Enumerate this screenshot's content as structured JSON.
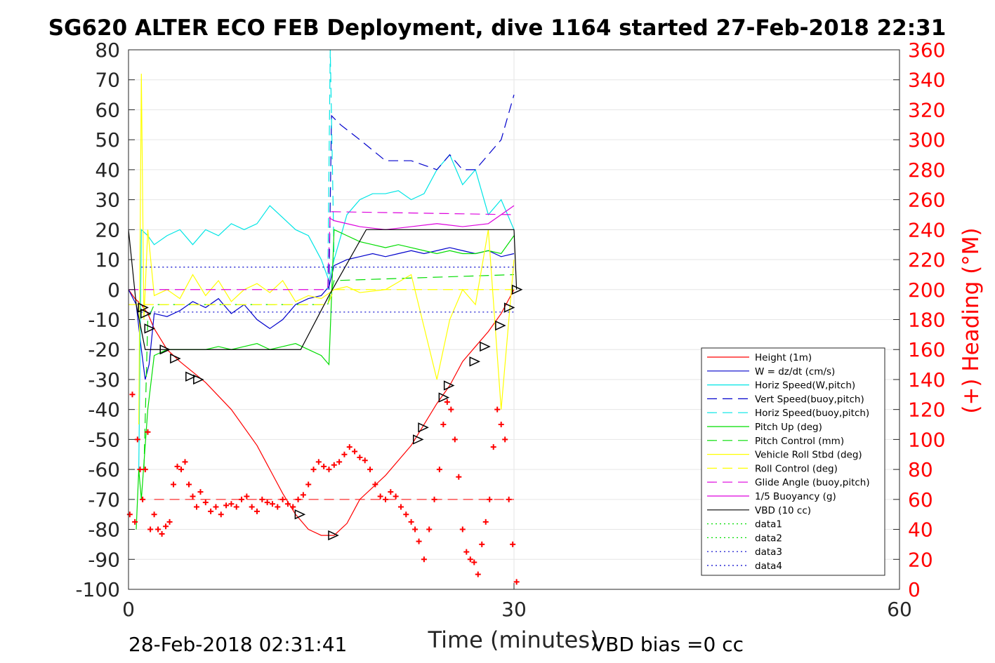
{
  "chart_data": {
    "type": "line",
    "title": "SG620 ALTER ECO FEB Deployment, dive 1164 started 27-Feb-2018 22:31",
    "xlabel": "Time (minutes)",
    "ylabel_right": "(+) Heading (°M)",
    "footer_left": "28-Feb-2018 02:31:41",
    "footer_right": "VBD bias =0 cc",
    "xlim": [
      0,
      60
    ],
    "ylim": [
      -100,
      80
    ],
    "ylim_right": [
      0,
      360
    ],
    "x_ticks": [
      "0",
      "30",
      "60"
    ],
    "x_tick_values": [
      0,
      30,
      60
    ],
    "y_ticks": [
      "80",
      "70",
      "60",
      "50",
      "40",
      "30",
      "20",
      "10",
      "0",
      "-10",
      "-20",
      "-30",
      "-40",
      "-50",
      "-60",
      "-70",
      "-80",
      "-90",
      "-100"
    ],
    "y_tick_values": [
      80,
      70,
      60,
      50,
      40,
      30,
      20,
      10,
      0,
      -10,
      -20,
      -30,
      -40,
      -50,
      -60,
      -70,
      -80,
      -90,
      -100
    ],
    "y2_ticks": [
      "360",
      "340",
      "320",
      "300",
      "280",
      "260",
      "240",
      "220",
      "200",
      "180",
      "160",
      "140",
      "120",
      "100",
      "80",
      "60",
      "40",
      "20",
      "0"
    ],
    "y2_tick_values": [
      360,
      340,
      320,
      300,
      280,
      260,
      240,
      220,
      200,
      180,
      160,
      140,
      120,
      100,
      80,
      60,
      40,
      20,
      0
    ],
    "grid": true,
    "legend_position": "right",
    "legend": [
      {
        "label": "Height (1m)",
        "color": "#ff0000",
        "style": "solid"
      },
      {
        "label": "W = dz/dt (cm/s)",
        "color": "#0000cc",
        "style": "solid"
      },
      {
        "label": "Horiz Speed(W,pitch)",
        "color": "#00e5e5",
        "style": "solid"
      },
      {
        "label": "Vert Speed(buoy,pitch)",
        "color": "#0000cc",
        "style": "dashed"
      },
      {
        "label": "Horiz Speed(buoy,pitch)",
        "color": "#00e5e5",
        "style": "dashed"
      },
      {
        "label": "Pitch Up (deg)",
        "color": "#00dd00",
        "style": "solid"
      },
      {
        "label": "Pitch Control (mm)",
        "color": "#00dd00",
        "style": "dashed"
      },
      {
        "label": "Vehicle Roll Stbd (deg)",
        "color": "#ffff00",
        "style": "solid"
      },
      {
        "label": "Roll Control (deg)",
        "color": "#ffff00",
        "style": "dashed"
      },
      {
        "label": "Glide Angle (buoy,pitch)",
        "color": "#dd00dd",
        "style": "dashed"
      },
      {
        "label": "1/5 Buoyancy (g)",
        "color": "#dd00dd",
        "style": "solid"
      },
      {
        "label": "VBD (10 cc)",
        "color": "#000000",
        "style": "solid"
      },
      {
        "label": "data1",
        "color": "#00dd00",
        "style": "dotted"
      },
      {
        "label": "data2",
        "color": "#00dd00",
        "style": "dotted"
      },
      {
        "label": "data3",
        "color": "#0000cc",
        "style": "dotted"
      },
      {
        "label": "data4",
        "color": "#0000cc",
        "style": "dotted"
      }
    ],
    "series": [
      {
        "name": "Height (1m)",
        "color": "#ff0000",
        "style": "solid",
        "axis": "left",
        "x": [
          0,
          0.5,
          1,
          1.5,
          2,
          3,
          4,
          6,
          8,
          10,
          11,
          12,
          13,
          14,
          15,
          16,
          17,
          18,
          20,
          22,
          24,
          25,
          26,
          27,
          28,
          29,
          30
        ],
        "y": [
          0,
          -3,
          -5,
          -8,
          -13,
          -20,
          -24,
          -31,
          -40,
          -52,
          -60,
          -68,
          -75,
          -80,
          -82,
          -82,
          -78,
          -70,
          -62,
          -52,
          -38,
          -32,
          -24,
          -19,
          -14,
          -8,
          0
        ]
      },
      {
        "name": "W = dz/dt (cm/s)",
        "color": "#0000cc",
        "style": "solid",
        "axis": "left",
        "x": [
          0,
          0.6,
          1,
          1.3,
          1.6,
          2,
          3,
          4,
          5,
          6,
          7,
          8,
          9,
          10,
          11,
          12,
          13,
          14,
          15,
          15.6,
          16,
          17,
          18,
          19,
          20,
          21,
          22,
          23,
          24,
          25,
          26,
          27,
          28,
          29,
          30
        ],
        "y": [
          0,
          -5,
          -20,
          -30,
          -25,
          -8,
          -9,
          -7,
          -4,
          -6,
          -3,
          -8,
          -5,
          -10,
          -13,
          -10,
          -5,
          -3,
          -2,
          1,
          8,
          10,
          11,
          12,
          11,
          12,
          13,
          12,
          13,
          14,
          13,
          12,
          13,
          11,
          12
        ]
      },
      {
        "name": "Horiz Speed(W,pitch)",
        "color": "#00e5e5",
        "style": "solid",
        "axis": "left",
        "x": [
          0.8,
          1,
          1.5,
          2,
          3,
          4,
          5,
          6,
          7,
          8,
          9,
          10,
          11,
          12,
          13,
          14,
          15,
          15.6,
          16,
          17,
          18,
          19,
          20,
          21,
          22,
          23,
          24,
          25,
          26,
          27,
          28,
          29,
          30
        ],
        "y": [
          -60,
          20,
          18,
          15,
          18,
          20,
          15,
          20,
          18,
          22,
          20,
          22,
          28,
          24,
          20,
          18,
          10,
          3,
          10,
          25,
          30,
          32,
          32,
          33,
          30,
          32,
          40,
          45,
          35,
          40,
          25,
          30,
          20
        ]
      },
      {
        "name": "Vert Speed(buoy,pitch)",
        "color": "#0000cc",
        "style": "dashed",
        "axis": "left",
        "x": [
          15.6,
          15.8,
          16.5,
          18,
          20,
          22,
          24,
          25,
          26,
          27,
          28,
          29,
          30
        ],
        "y": [
          0,
          58,
          55,
          50,
          43,
          43,
          40,
          45,
          40,
          40,
          45,
          50,
          65
        ]
      },
      {
        "name": "Horiz Speed(buoy,pitch)",
        "color": "#00e5e5",
        "style": "dashed",
        "axis": "left",
        "x": [
          15.5,
          15.7,
          16
        ],
        "y": [
          0,
          80,
          10
        ]
      },
      {
        "name": "Pitch Up (deg)",
        "color": "#00dd00",
        "style": "solid",
        "axis": "left",
        "x": [
          0.6,
          0.8,
          1,
          1.5,
          2,
          3,
          4,
          5,
          6,
          7,
          8,
          9,
          10,
          11,
          12,
          13,
          14,
          15,
          15.6,
          16,
          17,
          18,
          19,
          20,
          21,
          22,
          23,
          24,
          25,
          26,
          27,
          28,
          29,
          30
        ],
        "y": [
          -80,
          -60,
          -70,
          -40,
          -22,
          -20,
          -20,
          -20,
          -20,
          -19,
          -20,
          -19,
          -18,
          -20,
          -19,
          -18,
          -20,
          -22,
          -25,
          20,
          18,
          16,
          15,
          14,
          15,
          14,
          13,
          12,
          13,
          12,
          12,
          13,
          12,
          18
        ]
      },
      {
        "name": "Pitch Control (mm)",
        "color": "#00dd00",
        "style": "dashed",
        "axis": "left",
        "x": [
          1.2,
          1.5,
          2,
          15.5,
          16,
          30
        ],
        "y": [
          -60,
          -10,
          -5,
          -5,
          3,
          5
        ]
      },
      {
        "name": "Vehicle Roll Stbd (deg)",
        "color": "#ffff00",
        "style": "solid",
        "axis": "left",
        "x": [
          0.8,
          1,
          1.2,
          1.5,
          2,
          3,
          4,
          5,
          6,
          7,
          8,
          9,
          10,
          11,
          12,
          13,
          14,
          15,
          16,
          17,
          18,
          20,
          22,
          24,
          25,
          26,
          27,
          28,
          29,
          30
        ],
        "y": [
          -45,
          72,
          -10,
          20,
          -2,
          0,
          -3,
          5,
          -2,
          3,
          -4,
          0,
          2,
          -1,
          3,
          -4,
          -2,
          -3,
          0,
          1,
          -1,
          0,
          5,
          -30,
          -10,
          0,
          -5,
          20,
          -40,
          10
        ]
      },
      {
        "name": "Roll Control (deg)",
        "color": "#ffff00",
        "style": "dashed",
        "axis": "left",
        "x": [
          0,
          15.5,
          16,
          30
        ],
        "y": [
          -5,
          -5,
          0,
          0
        ]
      },
      {
        "name": "Glide Angle (buoy,pitch)",
        "color": "#dd00dd",
        "style": "dashed",
        "axis": "left",
        "x": [
          0,
          15.5,
          15.7,
          30
        ],
        "y": [
          0,
          0,
          26,
          25
        ]
      },
      {
        "name": "1/5 Buoyancy (g)",
        "color": "#dd00dd",
        "style": "solid",
        "axis": "left",
        "x": [
          15.6,
          16,
          18,
          20,
          22,
          24,
          26,
          28,
          30
        ],
        "y": [
          24,
          23,
          21,
          20,
          21,
          22,
          21,
          22,
          28
        ]
      },
      {
        "name": "VBD (10 cc)",
        "color": "#000000",
        "style": "solid",
        "axis": "left",
        "x": [
          0,
          0.6,
          1.3,
          13.4,
          15.6,
          18.5,
          30,
          30.2
        ],
        "y": [
          20,
          -5,
          -20,
          -20,
          -2,
          20,
          20,
          0
        ]
      },
      {
        "name": "data1",
        "color": "#00dd00",
        "style": "dotted",
        "axis": "left",
        "x": [],
        "y": []
      },
      {
        "name": "data2",
        "color": "#00dd00",
        "style": "dotted",
        "axis": "left",
        "x": [],
        "y": []
      },
      {
        "name": "data3",
        "color": "#0000cc",
        "style": "dotted",
        "axis": "left",
        "x": [
          1,
          30
        ],
        "y": [
          7.5,
          7.5
        ]
      },
      {
        "name": "data4",
        "color": "#0000cc",
        "style": "dotted",
        "axis": "left",
        "x": [
          1,
          30
        ],
        "y": [
          -7.5,
          -7.5
        ]
      }
    ],
    "heading_reference": {
      "color": "#ff0000",
      "style": "dashed",
      "axis": "right",
      "x": [
        2,
        30
      ],
      "y": [
        60,
        60
      ]
    },
    "heading_points": {
      "color": "#ff0000",
      "marker": "+",
      "axis": "right",
      "x": [
        0.1,
        0.3,
        0.5,
        0.7,
        0.9,
        1.1,
        1.3,
        1.5,
        1.7,
        2.0,
        2.3,
        2.6,
        2.9,
        3.2,
        3.5,
        3.8,
        4.1,
        4.4,
        4.7,
        5.0,
        5.3,
        5.6,
        6.0,
        6.4,
        6.8,
        7.2,
        7.6,
        8.0,
        8.4,
        8.8,
        9.2,
        9.6,
        10.0,
        10.4,
        10.8,
        11.2,
        11.6,
        12.0,
        12.4,
        12.8,
        13.2,
        13.6,
        14.0,
        14.4,
        14.8,
        15.2,
        15.6,
        16.0,
        16.4,
        16.8,
        17.2,
        17.6,
        18.0,
        18.4,
        18.8,
        19.2,
        19.6,
        20.0,
        20.4,
        20.8,
        21.2,
        21.6,
        22.0,
        22.3,
        22.6,
        23.0,
        23.4,
        23.8,
        24.2,
        24.5,
        24.8,
        25.1,
        25.4,
        25.7,
        26.0,
        26.3,
        26.6,
        26.9,
        27.2,
        27.5,
        27.8,
        28.1,
        28.4,
        28.7,
        29.0,
        29.3,
        29.6,
        29.9,
        30.2
      ],
      "y": [
        50,
        130,
        45,
        100,
        80,
        60,
        80,
        105,
        40,
        50,
        40,
        37,
        42,
        45,
        70,
        82,
        80,
        85,
        70,
        62,
        55,
        65,
        58,
        52,
        55,
        50,
        56,
        57,
        55,
        60,
        62,
        55,
        52,
        60,
        58,
        57,
        55,
        60,
        57,
        55,
        60,
        63,
        70,
        80,
        85,
        82,
        80,
        83,
        85,
        90,
        95,
        92,
        88,
        86,
        80,
        70,
        62,
        60,
        65,
        62,
        55,
        50,
        45,
        40,
        32,
        20,
        40,
        60,
        80,
        110,
        125,
        120,
        100,
        75,
        40,
        25,
        20,
        18,
        10,
        30,
        45,
        60,
        95,
        120,
        110,
        100,
        60,
        30,
        5
      ]
    },
    "event_markers": {
      "color": "#000000",
      "marker": "triangle",
      "axis": "left",
      "x": [
        1.1,
        1.3,
        1.6,
        2.8,
        3.6,
        4.8,
        5.4,
        13.3,
        15.9,
        22.5,
        22.9,
        24.5,
        24.9,
        26.9,
        27.7,
        28.9,
        29.6,
        30.2
      ],
      "y": [
        -6,
        -8,
        -13,
        -20,
        -23,
        -29,
        -30,
        -75,
        -82,
        -50,
        -46,
        -36,
        -32,
        -24,
        -19,
        -12,
        -6,
        0
      ]
    }
  }
}
